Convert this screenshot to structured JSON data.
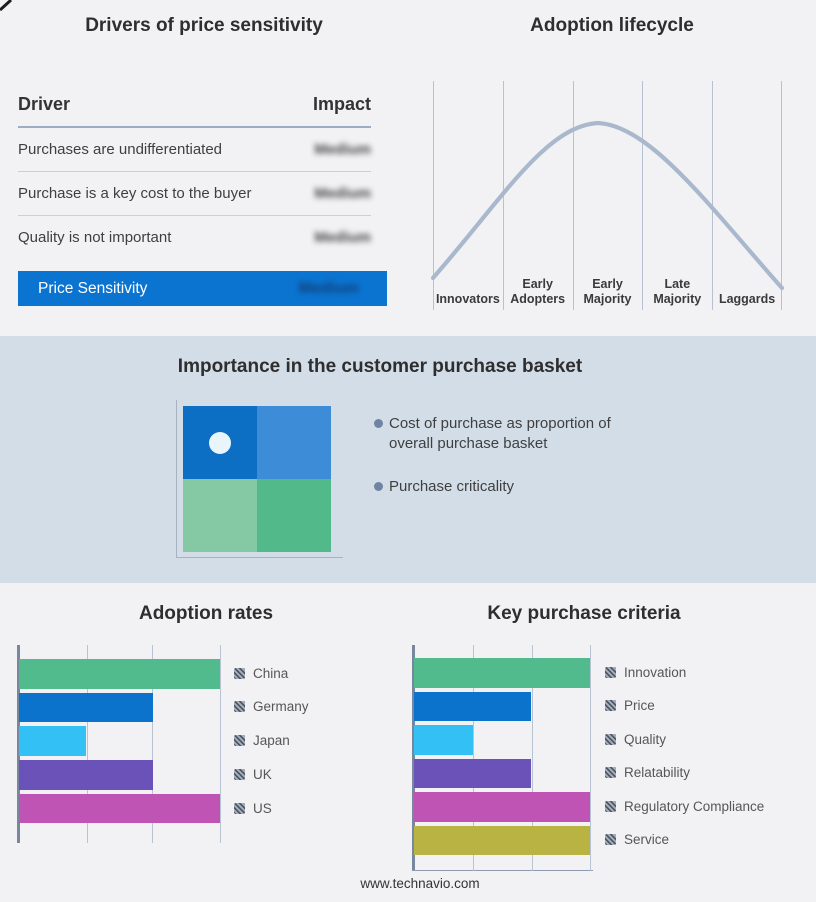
{
  "colors": {
    "page_bg": "#f2f2f4",
    "band_bg": "#d2dde8",
    "accent_blue": "#0b74d1",
    "curve": "#a9b8cc",
    "gridline": "#b6c1d2",
    "axis": "#76879e",
    "quad_top_left": "#0c6fc4",
    "quad_top_right": "#3d8cd8",
    "quad_bottom_left": "#85c8a4",
    "quad_bottom_right": "#52ba8a",
    "bullet_dot": "#6f84a2"
  },
  "drivers_panel": {
    "title": "Drivers of price sensitivity",
    "header": {
      "driver": "Driver",
      "impact": "Impact"
    },
    "rows": [
      {
        "driver": "Purchases are undifferentiated",
        "impact": "Medium"
      },
      {
        "driver": "Purchase is a key cost to the buyer",
        "impact": "Medium"
      },
      {
        "driver": "Quality is not important",
        "impact": "Medium"
      }
    ],
    "highlight": {
      "label": "Price Sensitivity",
      "impact": "Medium"
    }
  },
  "lifecycle_panel": {
    "title": "Adoption lifecycle",
    "stages": [
      "Innovators",
      "Early Adopters",
      "Early Majority",
      "Late Majority",
      "Laggards"
    ]
  },
  "basket_panel": {
    "title": "Importance in the customer purchase basket",
    "bullets": [
      "Cost of purchase as proportion of overall purchase basket",
      "Purchase criticality"
    ]
  },
  "footer": {
    "url": "www.technavio.com"
  },
  "chart_data": [
    {
      "type": "table",
      "title": "Drivers of price sensitivity",
      "columns": [
        "Driver",
        "Impact"
      ],
      "rows": [
        [
          "Purchases are undifferentiated",
          "Medium"
        ],
        [
          "Purchase is a key cost to the buyer",
          "Medium"
        ],
        [
          "Quality is not important",
          "Medium"
        ]
      ],
      "summary_row": [
        "Price Sensitivity",
        "Medium"
      ],
      "note": "Impact values appear blurred/redacted in the source image"
    },
    {
      "type": "line",
      "title": "Adoption lifecycle",
      "categories": [
        "Innovators",
        "Early Adopters",
        "Early Majority",
        "Late Majority",
        "Laggards"
      ],
      "curve": "bell",
      "x": [
        0,
        1,
        2,
        2.4,
        3,
        4,
        5
      ],
      "y_relative": [
        0.05,
        0.5,
        0.93,
        1.0,
        0.85,
        0.45,
        0.0
      ],
      "peak_stage": "Early Majority"
    },
    {
      "type": "bar",
      "title": "Adoption rates",
      "orientation": "horizontal",
      "categories": [
        "China",
        "Germany",
        "Japan",
        "UK",
        "US"
      ],
      "values": [
        3,
        2,
        1,
        2,
        3
      ],
      "max": 3,
      "colors": [
        "#52bb8d",
        "#0b73cb",
        "#33c0f5",
        "#6b52b8",
        "#c054b5"
      ],
      "legend_position": "right",
      "note": "no numeric axis labels shown; values in gridline units"
    },
    {
      "type": "bar",
      "title": "Key purchase criteria",
      "orientation": "horizontal",
      "categories": [
        "Innovation",
        "Price",
        "Quality",
        "Relatability",
        "Regulatory Compliance",
        "Service"
      ],
      "values": [
        3,
        2,
        1,
        2,
        3,
        3
      ],
      "max": 3,
      "colors": [
        "#52bb8d",
        "#0b73cb",
        "#33c0f5",
        "#6b52b8",
        "#c054b5",
        "#b9b343"
      ],
      "legend_position": "right",
      "note": "no numeric axis labels shown; values in gridline units"
    }
  ]
}
